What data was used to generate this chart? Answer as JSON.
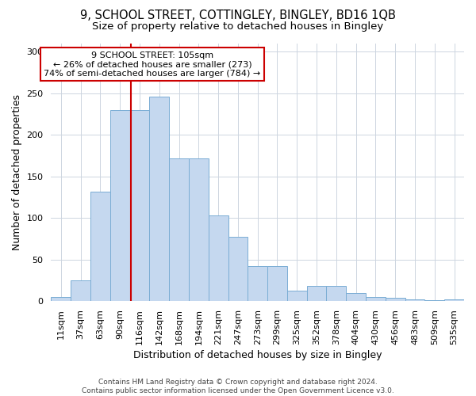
{
  "title_line1": "9, SCHOOL STREET, COTTINGLEY, BINGLEY, BD16 1QB",
  "title_line2": "Size of property relative to detached houses in Bingley",
  "xlabel": "Distribution of detached houses by size in Bingley",
  "ylabel": "Number of detached properties",
  "footer_line1": "Contains HM Land Registry data © Crown copyright and database right 2024.",
  "footer_line2": "Contains public sector information licensed under the Open Government Licence v3.0.",
  "categories": [
    "11sqm",
    "37sqm",
    "63sqm",
    "90sqm",
    "116sqm",
    "142sqm",
    "168sqm",
    "194sqm",
    "221sqm",
    "247sqm",
    "273sqm",
    "299sqm",
    "325sqm",
    "352sqm",
    "378sqm",
    "404sqm",
    "430sqm",
    "456sqm",
    "483sqm",
    "509sqm",
    "535sqm"
  ],
  "values": [
    5,
    25,
    132,
    230,
    230,
    246,
    172,
    172,
    103,
    77,
    42,
    42,
    13,
    18,
    18,
    10,
    5,
    4,
    2,
    1,
    2
  ],
  "bar_color": "#c5d8ef",
  "bar_edge_color": "#7aadd4",
  "vline_x": 3.55,
  "vline_color": "#cc0000",
  "annotation_text": "9 SCHOOL STREET: 105sqm\n← 26% of detached houses are smaller (273)\n74% of semi-detached houses are larger (784) →",
  "annotation_box_color": "#ffffff",
  "annotation_box_edge_color": "#cc0000",
  "ylim": [
    0,
    310
  ],
  "yticks": [
    0,
    50,
    100,
    150,
    200,
    250,
    300
  ],
  "background_color": "#ffffff",
  "grid_color": "#cdd5e0",
  "title_fontsize": 10.5,
  "subtitle_fontsize": 9.5,
  "axis_label_fontsize": 9,
  "tick_fontsize": 8,
  "annotation_fontsize": 8,
  "footer_fontsize": 6.5
}
